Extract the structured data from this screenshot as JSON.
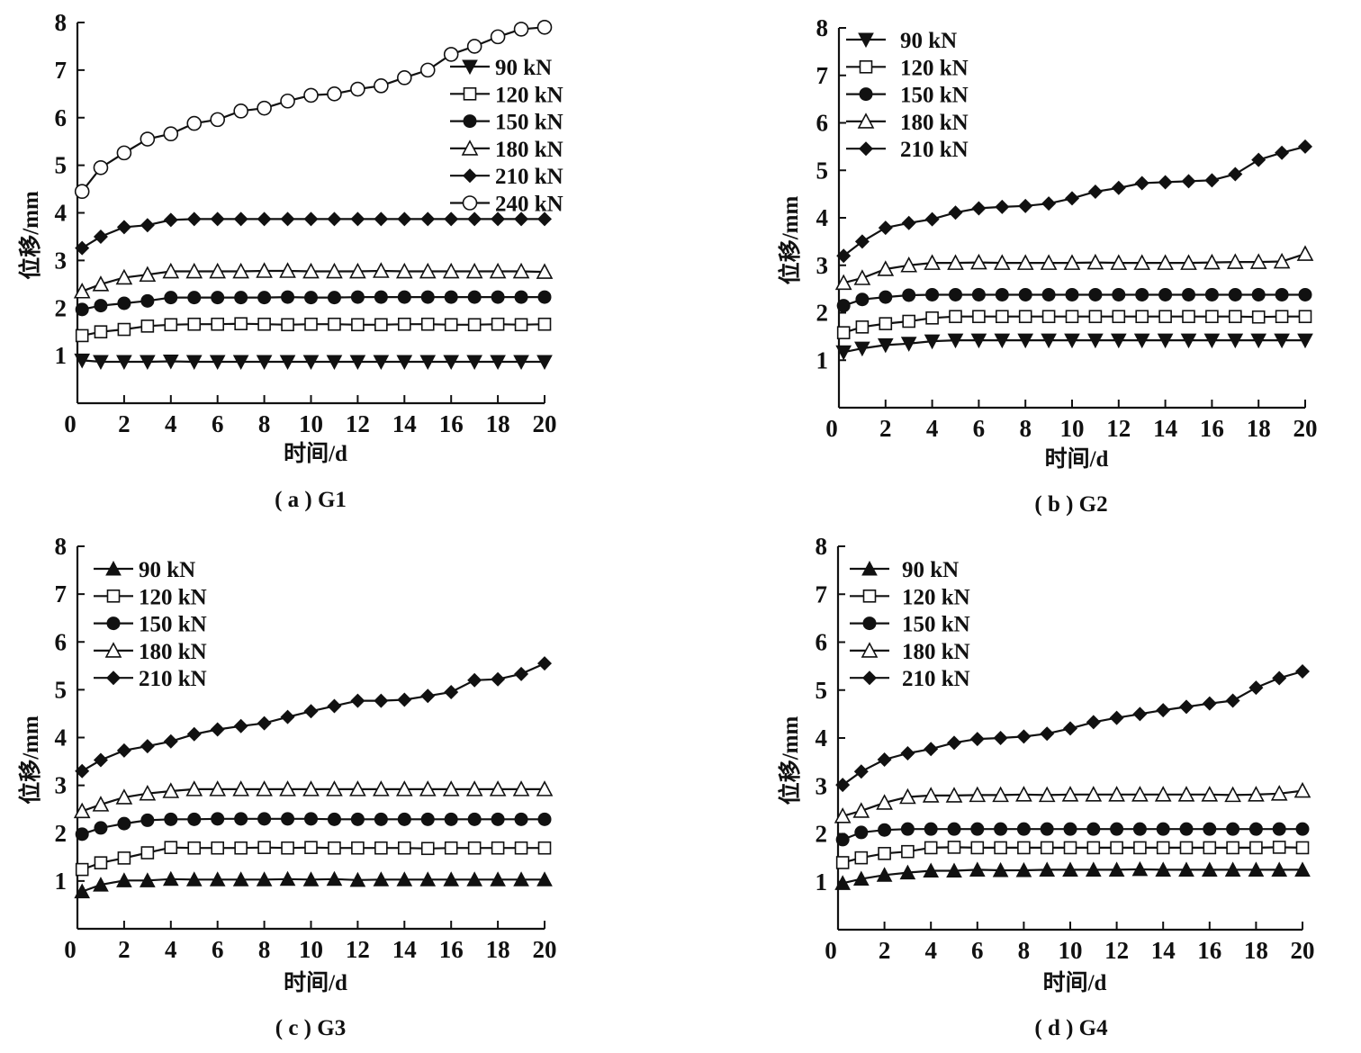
{
  "chart_data": [
    {
      "type": "line",
      "panel": "a",
      "caption": "( a ) G1",
      "xlabel": "时间/d",
      "ylabel": "位移/mm",
      "xlim": [
        0,
        20
      ],
      "ylim": [
        0,
        8
      ],
      "xticks": [
        "0",
        "2",
        "4",
        "6",
        "8",
        "10",
        "12",
        "14",
        "16",
        "18",
        "20"
      ],
      "yticks": [
        "1",
        "2",
        "3",
        "4",
        "5",
        "6",
        "7",
        "8"
      ],
      "legend_position": "right",
      "x": [
        0.2,
        1,
        2,
        3,
        4,
        5,
        6,
        7,
        8,
        9,
        10,
        11,
        12,
        13,
        14,
        15,
        16,
        17,
        18,
        19,
        20
      ],
      "series": [
        {
          "name": "90 kN",
          "marker": "triangle-down-filled",
          "values": [
            0.9,
            0.87,
            0.87,
            0.87,
            0.88,
            0.87,
            0.87,
            0.87,
            0.87,
            0.87,
            0.87,
            0.87,
            0.87,
            0.87,
            0.87,
            0.87,
            0.87,
            0.87,
            0.87,
            0.87,
            0.87
          ]
        },
        {
          "name": "120 kN",
          "marker": "square-open",
          "values": [
            1.42,
            1.5,
            1.55,
            1.62,
            1.65,
            1.66,
            1.66,
            1.67,
            1.66,
            1.65,
            1.66,
            1.66,
            1.65,
            1.65,
            1.66,
            1.66,
            1.65,
            1.65,
            1.66,
            1.65,
            1.66
          ]
        },
        {
          "name": "150 kN",
          "marker": "circle-filled",
          "values": [
            1.97,
            2.05,
            2.1,
            2.15,
            2.22,
            2.22,
            2.22,
            2.22,
            2.22,
            2.23,
            2.22,
            2.22,
            2.23,
            2.23,
            2.23,
            2.23,
            2.23,
            2.23,
            2.23,
            2.23,
            2.23
          ]
        },
        {
          "name": "180 kN",
          "marker": "triangle-up-open",
          "values": [
            2.35,
            2.5,
            2.64,
            2.7,
            2.77,
            2.77,
            2.77,
            2.77,
            2.78,
            2.78,
            2.77,
            2.77,
            2.77,
            2.78,
            2.77,
            2.77,
            2.77,
            2.77,
            2.77,
            2.77,
            2.76
          ]
        },
        {
          "name": "210 kN",
          "marker": "diamond-filled",
          "values": [
            3.26,
            3.5,
            3.7,
            3.74,
            3.85,
            3.87,
            3.87,
            3.87,
            3.87,
            3.87,
            3.87,
            3.87,
            3.87,
            3.87,
            3.87,
            3.87,
            3.87,
            3.87,
            3.87,
            3.87,
            3.87
          ]
        },
        {
          "name": "240 kN",
          "marker": "circle-open",
          "values": [
            4.45,
            4.95,
            5.26,
            5.55,
            5.66,
            5.88,
            5.96,
            6.14,
            6.2,
            6.35,
            6.47,
            6.5,
            6.6,
            6.67,
            6.84,
            7.0,
            7.33,
            7.5,
            7.7,
            7.86,
            7.9
          ]
        }
      ]
    },
    {
      "type": "line",
      "panel": "b",
      "caption": "( b ) G2",
      "xlabel": "时间/d",
      "ylabel": "位移/mm",
      "xlim": [
        0,
        20
      ],
      "ylim": [
        0,
        8
      ],
      "xticks": [
        "0",
        "2",
        "4",
        "6",
        "8",
        "10",
        "12",
        "14",
        "16",
        "18",
        "20"
      ],
      "yticks": [
        "1",
        "2",
        "3",
        "4",
        "5",
        "6",
        "7",
        "8"
      ],
      "legend_position": "top-left",
      "x": [
        0.2,
        1,
        2,
        3,
        4,
        5,
        6,
        7,
        8,
        9,
        10,
        11,
        12,
        13,
        14,
        15,
        16,
        17,
        18,
        19,
        20
      ],
      "series": [
        {
          "name": "90 kN",
          "marker": "triangle-down-filled",
          "values": [
            1.17,
            1.25,
            1.32,
            1.35,
            1.4,
            1.42,
            1.42,
            1.42,
            1.42,
            1.42,
            1.42,
            1.42,
            1.42,
            1.42,
            1.42,
            1.42,
            1.42,
            1.42,
            1.42,
            1.42,
            1.42
          ]
        },
        {
          "name": "120 kN",
          "marker": "square-open",
          "values": [
            1.58,
            1.7,
            1.77,
            1.82,
            1.89,
            1.92,
            1.92,
            1.92,
            1.92,
            1.92,
            1.92,
            1.92,
            1.92,
            1.92,
            1.92,
            1.92,
            1.92,
            1.92,
            1.91,
            1.92,
            1.92
          ]
        },
        {
          "name": "150 kN",
          "marker": "circle-filled",
          "values": [
            2.15,
            2.28,
            2.33,
            2.37,
            2.38,
            2.38,
            2.38,
            2.38,
            2.38,
            2.38,
            2.38,
            2.38,
            2.38,
            2.38,
            2.38,
            2.38,
            2.38,
            2.38,
            2.38,
            2.38,
            2.38
          ]
        },
        {
          "name": "180 kN",
          "marker": "triangle-up-open",
          "values": [
            2.63,
            2.73,
            2.92,
            3.0,
            3.05,
            3.05,
            3.06,
            3.05,
            3.05,
            3.05,
            3.05,
            3.06,
            3.05,
            3.05,
            3.05,
            3.05,
            3.06,
            3.07,
            3.07,
            3.08,
            3.24
          ]
        },
        {
          "name": "210 kN",
          "marker": "diamond-filled",
          "values": [
            3.2,
            3.5,
            3.79,
            3.89,
            3.97,
            4.11,
            4.2,
            4.23,
            4.25,
            4.3,
            4.41,
            4.55,
            4.63,
            4.73,
            4.75,
            4.77,
            4.79,
            4.92,
            5.22,
            5.37,
            5.5
          ]
        }
      ]
    },
    {
      "type": "line",
      "panel": "c",
      "caption": "( c ) G3",
      "xlabel": "时间/d",
      "ylabel": "位移/mm",
      "xlim": [
        0,
        20
      ],
      "ylim": [
        0,
        8
      ],
      "xticks": [
        "0",
        "2",
        "4",
        "6",
        "8",
        "10",
        "12",
        "14",
        "16",
        "18",
        "20"
      ],
      "yticks": [
        "1",
        "2",
        "3",
        "4",
        "5",
        "6",
        "7",
        "8"
      ],
      "legend_position": "top-left",
      "x": [
        0.2,
        1,
        2,
        3,
        4,
        5,
        6,
        7,
        8,
        9,
        10,
        11,
        12,
        13,
        14,
        15,
        16,
        17,
        18,
        19,
        20
      ],
      "series": [
        {
          "name": "90 kN",
          "marker": "triangle-up-filled",
          "values": [
            0.78,
            0.92,
            1.01,
            1.01,
            1.04,
            1.03,
            1.03,
            1.03,
            1.03,
            1.04,
            1.03,
            1.04,
            1.02,
            1.03,
            1.03,
            1.03,
            1.03,
            1.03,
            1.03,
            1.03,
            1.03
          ]
        },
        {
          "name": "120 kN",
          "marker": "square-open",
          "values": [
            1.24,
            1.38,
            1.48,
            1.59,
            1.7,
            1.69,
            1.69,
            1.69,
            1.7,
            1.69,
            1.7,
            1.69,
            1.69,
            1.69,
            1.69,
            1.68,
            1.69,
            1.69,
            1.69,
            1.69,
            1.69
          ]
        },
        {
          "name": "150 kN",
          "marker": "circle-filled",
          "values": [
            1.98,
            2.11,
            2.2,
            2.27,
            2.29,
            2.29,
            2.3,
            2.3,
            2.3,
            2.3,
            2.3,
            2.29,
            2.29,
            2.29,
            2.29,
            2.29,
            2.29,
            2.29,
            2.29,
            2.29,
            2.29
          ]
        },
        {
          "name": "180 kN",
          "marker": "triangle-up-open",
          "values": [
            2.46,
            2.6,
            2.75,
            2.83,
            2.88,
            2.92,
            2.92,
            2.92,
            2.92,
            2.92,
            2.92,
            2.92,
            2.92,
            2.92,
            2.92,
            2.92,
            2.92,
            2.92,
            2.92,
            2.92,
            2.92
          ]
        },
        {
          "name": "210 kN",
          "marker": "diamond-filled",
          "values": [
            3.3,
            3.53,
            3.73,
            3.82,
            3.92,
            4.07,
            4.17,
            4.24,
            4.3,
            4.43,
            4.55,
            4.66,
            4.77,
            4.77,
            4.79,
            4.87,
            4.95,
            5.2,
            5.22,
            5.33,
            5.55
          ]
        }
      ]
    },
    {
      "type": "line",
      "panel": "d",
      "caption": "( d ) G4",
      "xlabel": "时间/d",
      "ylabel": "位移/mm",
      "xlim": [
        0,
        20
      ],
      "ylim": [
        0,
        8
      ],
      "xticks": [
        "0",
        "2",
        "4",
        "6",
        "8",
        "10",
        "12",
        "14",
        "16",
        "18",
        "20"
      ],
      "yticks": [
        "1",
        "2",
        "3",
        "4",
        "5",
        "6",
        "7",
        "8"
      ],
      "legend_position": "top-left",
      "x": [
        0.2,
        1,
        2,
        3,
        4,
        5,
        6,
        7,
        8,
        9,
        10,
        11,
        12,
        13,
        14,
        15,
        16,
        17,
        18,
        19,
        20
      ],
      "series": [
        {
          "name": "90 kN",
          "marker": "triangle-up-filled",
          "values": [
            0.97,
            1.06,
            1.14,
            1.19,
            1.23,
            1.23,
            1.25,
            1.24,
            1.24,
            1.25,
            1.25,
            1.25,
            1.25,
            1.26,
            1.25,
            1.25,
            1.25,
            1.25,
            1.25,
            1.25,
            1.25
          ]
        },
        {
          "name": "120 kN",
          "marker": "square-open",
          "values": [
            1.4,
            1.5,
            1.59,
            1.63,
            1.71,
            1.72,
            1.71,
            1.71,
            1.71,
            1.71,
            1.71,
            1.71,
            1.71,
            1.71,
            1.71,
            1.71,
            1.71,
            1.71,
            1.71,
            1.72,
            1.71
          ]
        },
        {
          "name": "150 kN",
          "marker": "circle-filled",
          "values": [
            1.88,
            2.03,
            2.08,
            2.1,
            2.1,
            2.1,
            2.1,
            2.1,
            2.1,
            2.1,
            2.1,
            2.1,
            2.1,
            2.1,
            2.1,
            2.1,
            2.1,
            2.1,
            2.1,
            2.1,
            2.1
          ]
        },
        {
          "name": "180 kN",
          "marker": "triangle-up-open",
          "values": [
            2.37,
            2.48,
            2.65,
            2.77,
            2.8,
            2.8,
            2.81,
            2.81,
            2.82,
            2.81,
            2.82,
            2.82,
            2.82,
            2.82,
            2.82,
            2.82,
            2.82,
            2.81,
            2.82,
            2.84,
            2.9
          ]
        },
        {
          "name": "210 kN",
          "marker": "diamond-filled",
          "values": [
            3.02,
            3.3,
            3.55,
            3.68,
            3.77,
            3.9,
            3.98,
            4.0,
            4.03,
            4.09,
            4.2,
            4.33,
            4.42,
            4.5,
            4.58,
            4.65,
            4.72,
            4.78,
            5.05,
            5.25,
            5.39
          ]
        }
      ]
    }
  ],
  "colors": {
    "ink": "#111111",
    "background": "#ffffff"
  }
}
